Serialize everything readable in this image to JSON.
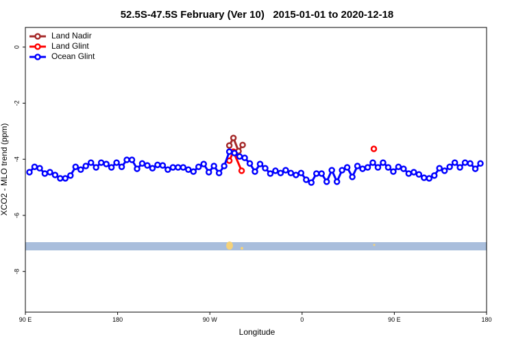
{
  "chart_data": {
    "type": "line",
    "title": "52.5S-47.5S February (Ver 10)   2015-01-01 to 2020-12-18",
    "x_label": "Longitude",
    "y_label": "XCO2 - MLO trend (ppm)",
    "xlim": [
      90,
      540
    ],
    "ylim": [
      -9.45,
      0.7
    ],
    "xticks": [
      {
        "value": 90,
        "label": "90 E"
      },
      180,
      {
        "value": 270,
        "label": "90 W"
      },
      {
        "value": 360,
        "label": "0"
      },
      {
        "value": 450,
        "label": "90 E"
      },
      {
        "value": 540,
        "label": "180"
      }
    ],
    "yticks": [
      0,
      -2,
      -4,
      -6,
      -8
    ],
    "legend": "top-left",
    "series": [
      {
        "name": "Land Nadir",
        "color": "#a52a2a",
        "x": [
          289,
          293,
          298,
          302
        ],
        "values": [
          -3.51,
          -3.24,
          -3.71,
          -3.49
        ]
      },
      {
        "name": "Land Glint",
        "color": "#ff0000",
        "x": [
          289,
          293,
          301,
          425,
          430
        ],
        "values": [
          -4.05,
          -3.73,
          -4.41,
          null,
          -3.63
        ]
      },
      {
        "name": "Ocean Glint",
        "color": "#0000ff",
        "x": [
          94,
          99,
          104,
          109,
          114,
          119,
          124,
          129,
          134,
          139,
          144,
          149,
          154,
          159,
          164,
          169,
          174,
          179,
          184,
          189,
          194,
          199,
          204,
          209,
          214,
          219,
          224,
          229,
          234,
          239,
          244,
          249,
          254,
          259,
          264,
          269,
          274,
          279,
          284,
          289,
          294,
          299,
          304,
          309,
          314,
          319,
          324,
          329,
          334,
          339,
          344,
          349,
          354,
          359,
          364,
          369,
          374,
          379,
          384,
          389,
          394,
          399,
          404,
          409,
          414,
          419,
          424,
          429,
          434,
          439,
          444,
          449,
          454,
          459,
          464,
          469,
          474,
          479,
          484,
          489,
          494,
          499,
          504,
          509,
          514,
          519,
          524,
          529,
          534
        ],
        "values": [
          -4.46,
          -4.27,
          -4.32,
          -4.51,
          -4.46,
          -4.56,
          -4.68,
          -4.68,
          -4.58,
          -4.27,
          -4.37,
          -4.24,
          -4.12,
          -4.29,
          -4.12,
          -4.17,
          -4.29,
          -4.12,
          -4.27,
          -4.02,
          -4.02,
          -4.34,
          -4.15,
          -4.22,
          -4.32,
          -4.2,
          -4.22,
          -4.37,
          -4.29,
          -4.29,
          -4.29,
          -4.37,
          -4.44,
          -4.27,
          -4.17,
          -4.46,
          -4.24,
          -4.49,
          -4.24,
          -3.73,
          -3.78,
          -3.9,
          -3.95,
          -4.15,
          -4.44,
          -4.17,
          -4.32,
          -4.51,
          -4.41,
          -4.49,
          -4.39,
          -4.49,
          -4.56,
          -4.49,
          -4.73,
          -4.83,
          -4.51,
          -4.51,
          -4.8,
          -4.39,
          -4.8,
          -4.39,
          -4.29,
          -4.63,
          -4.24,
          -4.34,
          -4.29,
          -4.12,
          -4.29,
          -4.12,
          -4.29,
          -4.44,
          -4.27,
          -4.34,
          -4.51,
          -4.46,
          -4.54,
          -4.66,
          -4.68,
          -4.58,
          -4.32,
          -4.41,
          -4.27,
          -4.12,
          -4.29,
          -4.12,
          -4.15,
          -4.34,
          -4.15
        ]
      }
    ]
  }
}
